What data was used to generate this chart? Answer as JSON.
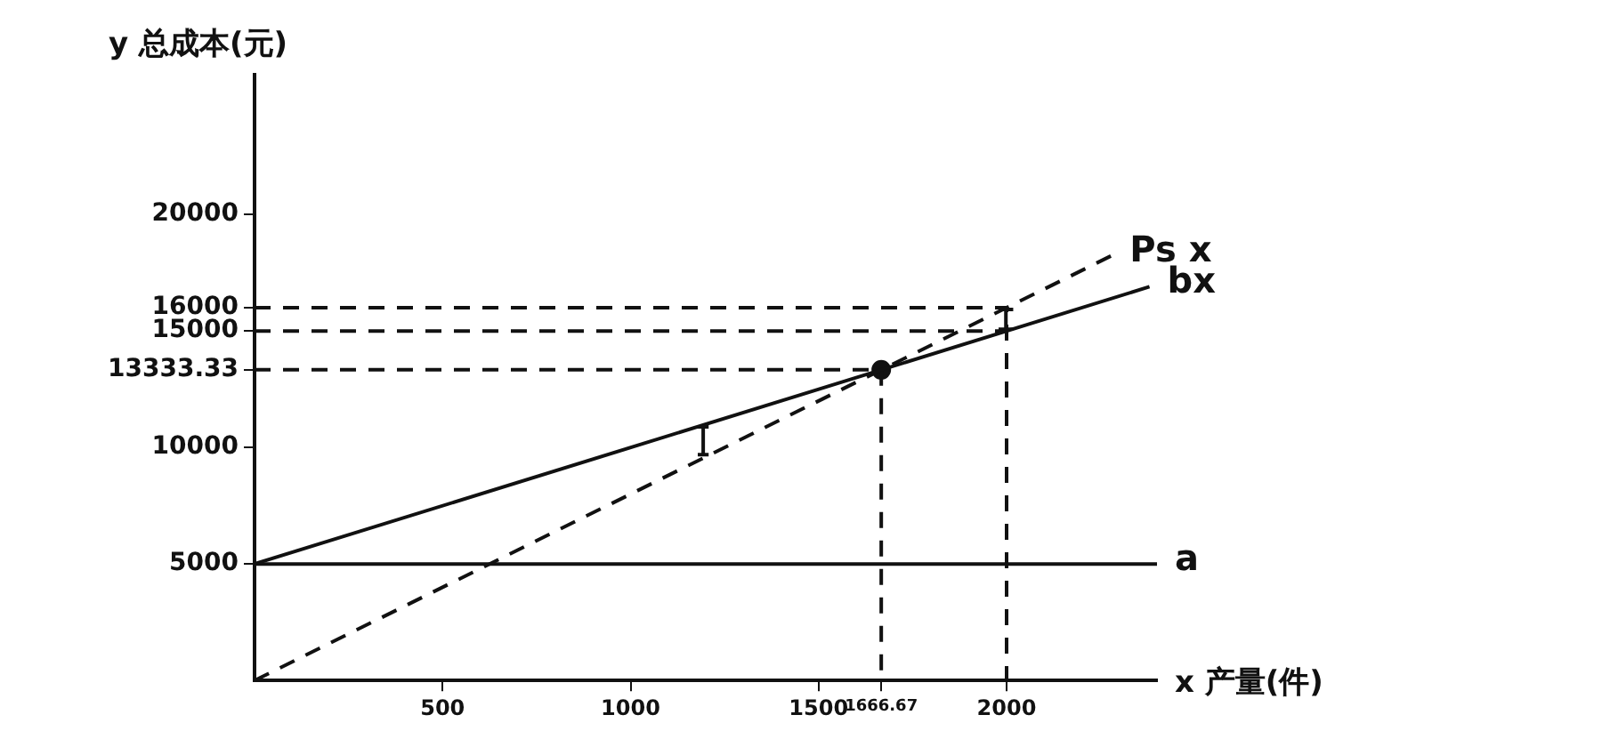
{
  "chart_data": {
    "type": "line",
    "xlabel": "x 产量(件)",
    "ylabel": "y 总成本(元)",
    "xlim": [
      0,
      2400
    ],
    "ylim": [
      0,
      26000
    ],
    "xticks": [
      500,
      1000,
      1500,
      1666.67,
      2000
    ],
    "yticks": [
      5000,
      10000,
      13333.33,
      15000,
      16000,
      20000
    ],
    "grid": false,
    "legend": false,
    "marker": "none",
    "series": [
      {
        "name": "a",
        "color": "#111111",
        "x": [
          0,
          2400
        ],
        "values": [
          5000,
          5000
        ]
      },
      {
        "name": "bx",
        "color": "#111111",
        "x": [
          0,
          2380
        ],
        "values": [
          5000,
          16900
        ]
      },
      {
        "name": "Ps x",
        "color": "#111111",
        "x": [
          0,
          2280
        ],
        "values": [
          0,
          18240
        ],
        "line_style": "dashed"
      },
      {
        "color": "#111111",
        "x": [
          0,
          1666.67,
          1666.67
        ],
        "values": [
          13333.33,
          13333.33,
          0
        ],
        "line_style": "dashed"
      },
      {
        "color": "#111111",
        "x": [
          0,
          2000,
          2000
        ],
        "values": [
          16000,
          16000,
          0
        ],
        "line_style": "dashed"
      },
      {
        "color": "#111111",
        "x": [
          0,
          2000
        ],
        "values": [
          15000,
          15000
        ],
        "line_style": "dashed"
      },
      {
        "type": "scatter",
        "color": "#111111",
        "x": [
          1666.67
        ],
        "values": [
          13333.33
        ],
        "marker": "circle"
      }
    ]
  }
}
